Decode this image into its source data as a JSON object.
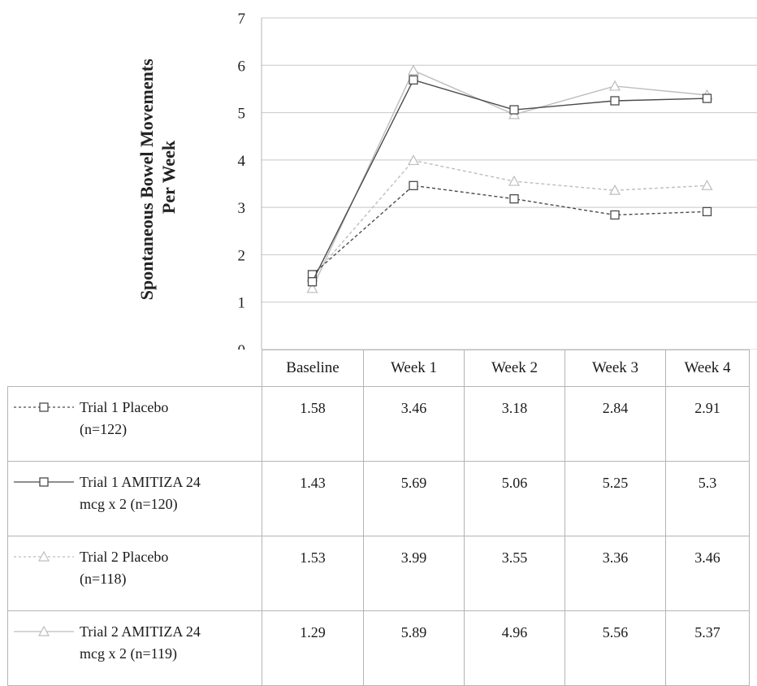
{
  "chart_data": {
    "type": "line",
    "ylabel_lines": [
      "Spontaneous Bowel Movements",
      "Per Week"
    ],
    "ylim": [
      0,
      7
    ],
    "yticks": [
      "0",
      "1",
      "2",
      "3",
      "4",
      "5",
      "6",
      "7"
    ],
    "grid": true,
    "categories": [
      "Baseline",
      "Week 1",
      "Week 2",
      "Week 3",
      "Week 4"
    ],
    "series": [
      {
        "name_lines": [
          "Trial 1 Placebo",
          "(n=122)"
        ],
        "marker": "square",
        "dash": true,
        "color": "#4a4a4a",
        "values": [
          1.58,
          3.46,
          3.18,
          2.84,
          2.91
        ],
        "labels": [
          "1.58",
          "3.46",
          "3.18",
          "2.84",
          "2.91"
        ]
      },
      {
        "name_lines": [
          "Trial 1 AMITIZA 24",
          "mcg x 2 (n=120)"
        ],
        "marker": "square",
        "dash": false,
        "color": "#4a4a4a",
        "values": [
          1.43,
          5.69,
          5.06,
          5.25,
          5.3
        ],
        "labels": [
          "1.43",
          "5.69",
          "5.06",
          "5.25",
          "5.3"
        ]
      },
      {
        "name_lines": [
          "Trial 2 Placebo",
          "(n=118)"
        ],
        "marker": "triangle",
        "dash": true,
        "color": "#bdbdbd",
        "values": [
          1.53,
          3.99,
          3.55,
          3.36,
          3.46
        ],
        "labels": [
          "1.53",
          "3.99",
          "3.55",
          "3.36",
          "3.46"
        ]
      },
      {
        "name_lines": [
          "Trial 2 AMITIZA 24",
          "mcg x 2 (n=119)"
        ],
        "marker": "triangle",
        "dash": false,
        "color": "#bdbdbd",
        "values": [
          1.29,
          5.89,
          4.96,
          5.56,
          5.37
        ],
        "labels": [
          "1.29",
          "5.89",
          "4.96",
          "5.56",
          "5.37"
        ]
      }
    ]
  }
}
